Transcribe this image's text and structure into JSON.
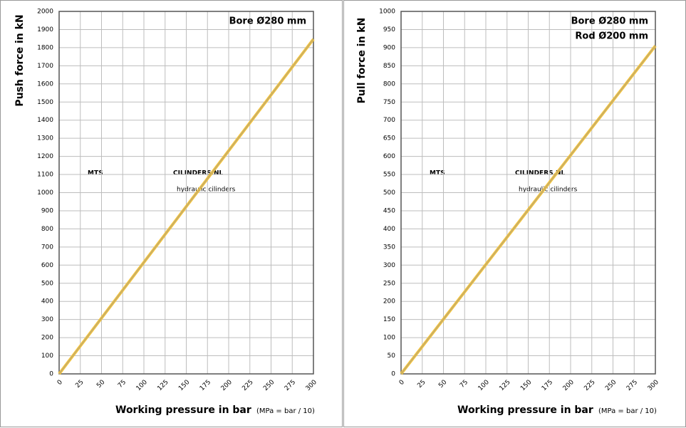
{
  "chart_data": [
    {
      "type": "line",
      "ylabel": "Push force in kN",
      "xlabel": "Working pressure in bar",
      "xnote": "(MPa = bar / 10)",
      "annotations": [
        "Bore Ø280 mm"
      ],
      "watermark": [
        "MTS",
        "CILINDERS.NL",
        "hydraulic cilinders"
      ],
      "x": [
        0,
        300
      ],
      "values": [
        0,
        1847
      ],
      "color": "#f2c23c",
      "xlim": [
        0,
        300
      ],
      "xticks": [
        0,
        25,
        50,
        75,
        100,
        125,
        150,
        175,
        200,
        225,
        250,
        275,
        300
      ],
      "ylim": [
        0,
        2000
      ],
      "yticks": [
        0,
        100,
        200,
        300,
        400,
        500,
        600,
        700,
        800,
        900,
        1000,
        1100,
        1200,
        1300,
        1400,
        1500,
        1600,
        1700,
        1800,
        1900,
        2000
      ],
      "grid": true
    },
    {
      "type": "line",
      "ylabel": "Pull force in kN",
      "xlabel": "Working pressure in bar",
      "xnote": "(MPa = bar / 10)",
      "annotations": [
        "Bore Ø280 mm",
        "Rod  Ø200 mm"
      ],
      "watermark": [
        "MTS",
        "CILINDERS.NL",
        "hydraulic cilinders"
      ],
      "x": [
        0,
        300
      ],
      "values": [
        0,
        905
      ],
      "color": "#f2c23c",
      "xlim": [
        0,
        300
      ],
      "xticks": [
        0,
        25,
        50,
        75,
        100,
        125,
        150,
        175,
        200,
        225,
        250,
        275,
        300
      ],
      "ylim": [
        0,
        1000
      ],
      "yticks": [
        0,
        50,
        100,
        150,
        200,
        250,
        300,
        350,
        400,
        450,
        500,
        550,
        600,
        650,
        700,
        750,
        800,
        850,
        900,
        950,
        1000
      ],
      "grid": true
    }
  ]
}
